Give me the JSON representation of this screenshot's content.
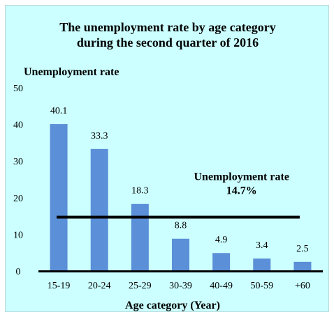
{
  "chart_data": {
    "type": "bar",
    "title": [
      "The unemployment rate by age category",
      "during the second quarter of 2016"
    ],
    "ylabel": "Unemployment rate",
    "xlabel": "Age category (Year)",
    "categories": [
      "15-19",
      "20-24",
      "25-29",
      "30-39",
      "40-49",
      "50-59",
      "+60"
    ],
    "values": [
      40.1,
      33.3,
      18.3,
      8.8,
      4.9,
      3.4,
      2.5
    ],
    "data_labels": [
      "40.1",
      "33.3",
      "18.3",
      "8.8",
      "4.9",
      "3.4",
      "2.5"
    ],
    "ylim": [
      0,
      50
    ],
    "yticks": [
      "0",
      "10",
      "20",
      "30",
      "40",
      "50"
    ],
    "reference_line": {
      "value": 14.7,
      "label_line1": "Unemployment rate",
      "label_line2": "14.7%"
    },
    "grid": false,
    "bar_color": "#5b8fd8",
    "background_color": "#ccffff"
  }
}
